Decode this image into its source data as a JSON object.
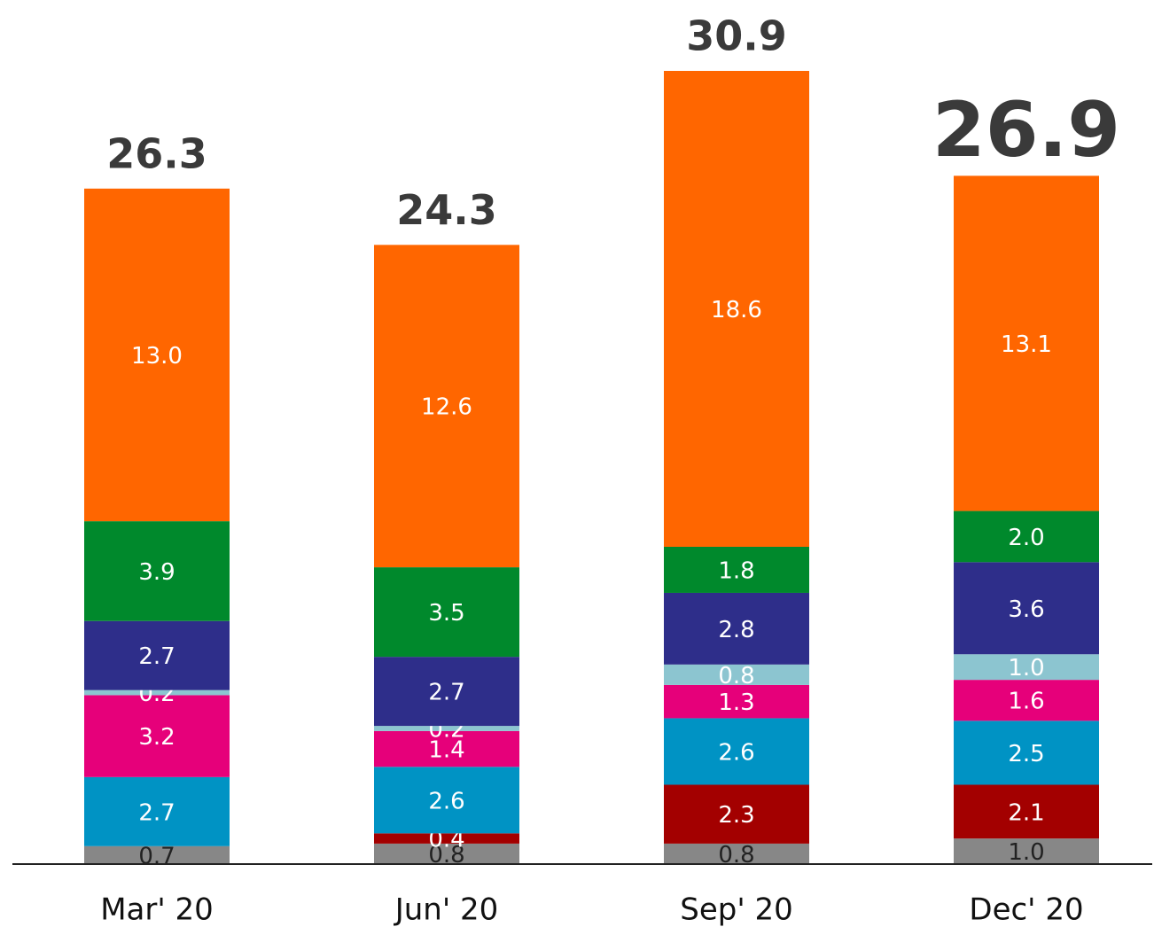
{
  "chart_data": {
    "type": "stacked_bar",
    "categories": [
      "Mar' 20",
      "Jun' 20",
      "Sep' 20",
      "Dec' 20"
    ],
    "series": [
      {
        "color": "#878787",
        "label_color": "#222222",
        "values": [
          0.7,
          0.8,
          0.8,
          1.0
        ],
        "value_labels": [
          "0.7",
          "0.8",
          "0.8",
          "1.0"
        ]
      },
      {
        "color": "#a30000",
        "label_color": "#ffffff",
        "values": [
          null,
          0.4,
          2.3,
          2.1
        ],
        "value_labels": [
          null,
          "0.4",
          "2.3",
          "2.1"
        ]
      },
      {
        "color": "#0093c4",
        "label_color": "#ffffff",
        "values": [
          2.7,
          2.6,
          2.6,
          2.5
        ],
        "value_labels": [
          "2.7",
          "2.6",
          "2.6",
          "2.5"
        ]
      },
      {
        "color": "#e6007a",
        "label_color": "#ffffff",
        "values": [
          3.2,
          1.4,
          1.3,
          1.6
        ],
        "value_labels": [
          "3.2",
          "1.4",
          "1.3",
          "1.6"
        ]
      },
      {
        "color": "#8cc5d0",
        "label_color": "#ffffff",
        "values": [
          0.2,
          0.2,
          0.8,
          1.0
        ],
        "value_labels": [
          "0.2",
          "0.2",
          "0.8",
          "1.0"
        ]
      },
      {
        "color": "#2e2e8a",
        "label_color": "#ffffff",
        "values": [
          2.7,
          2.7,
          2.8,
          3.6
        ],
        "value_labels": [
          "2.7",
          "2.7",
          "2.8",
          "3.6"
        ]
      },
      {
        "color": "#00892c",
        "label_color": "#ffffff",
        "values": [
          3.9,
          3.5,
          1.8,
          2.0
        ],
        "value_labels": [
          "3.9",
          "3.5",
          "1.8",
          "2.0"
        ]
      },
      {
        "color": "#ff6600",
        "label_color": "#ffffff",
        "values": [
          13.0,
          12.6,
          18.6,
          13.1
        ],
        "value_labels": [
          "13.0",
          "12.6",
          "18.6",
          "13.1"
        ]
      }
    ],
    "totals": [
      26.3,
      24.3,
      30.9,
      26.9
    ],
    "ylim": [
      0,
      31
    ]
  }
}
